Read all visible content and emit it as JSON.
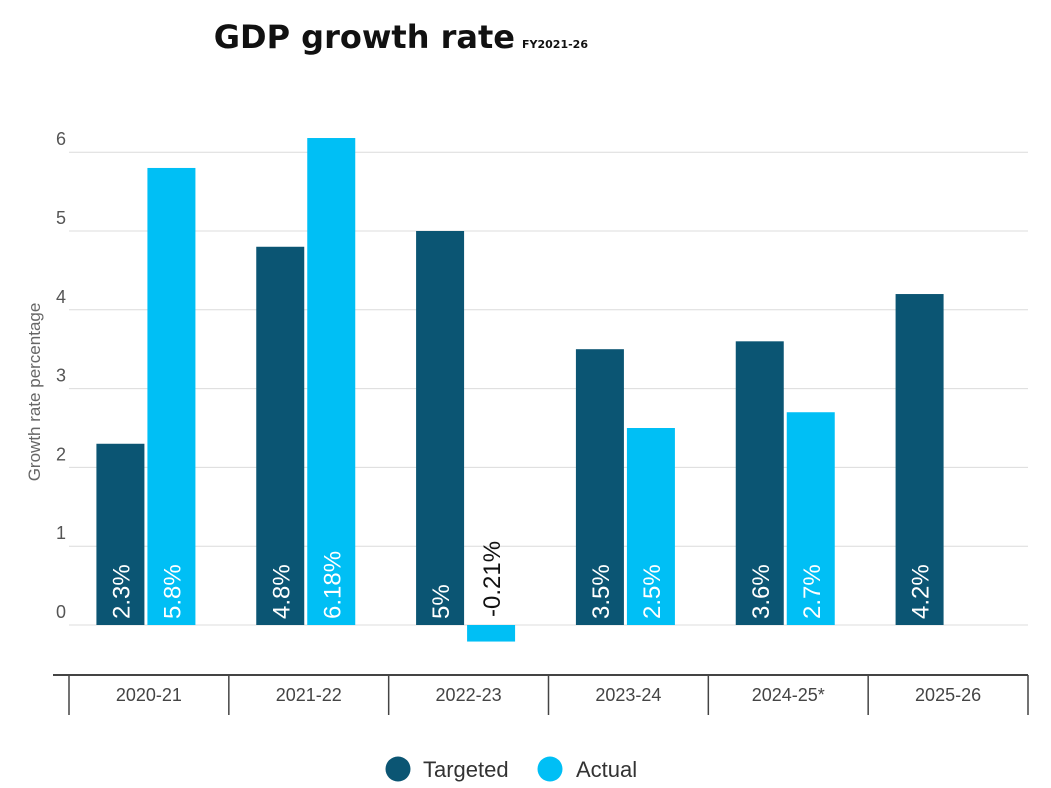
{
  "chart_data": {
    "type": "bar",
    "title": "GDP growth rate",
    "subtitle": "FY2021-26",
    "ylabel": "Growth rate percentage",
    "xlabel": "",
    "categories": [
      "2020-21",
      "2021-22",
      "2022-23",
      "2023-24",
      "2024-25*",
      "2025-26"
    ],
    "series": [
      {
        "name": "Targeted",
        "color": "#0b5573",
        "values": [
          2.3,
          4.8,
          5,
          3.5,
          3.6,
          4.2
        ],
        "labels": [
          "2.3%",
          "4.8%",
          "5%",
          "3.5%",
          "3.6%",
          "4.2%"
        ]
      },
      {
        "name": "Actual",
        "color": "#00bff5",
        "values": [
          5.8,
          6.18,
          -0.21,
          2.5,
          2.7,
          null
        ],
        "labels": [
          "5.8%",
          "6.18%",
          "-0.21%",
          "2.5%",
          "2.7%",
          null
        ]
      }
    ],
    "yticks": [
      0,
      1,
      2,
      3,
      4,
      5,
      6
    ],
    "ylim": [
      -0.6,
      6.5
    ],
    "grid": true,
    "legend_position": "bottom-center"
  }
}
